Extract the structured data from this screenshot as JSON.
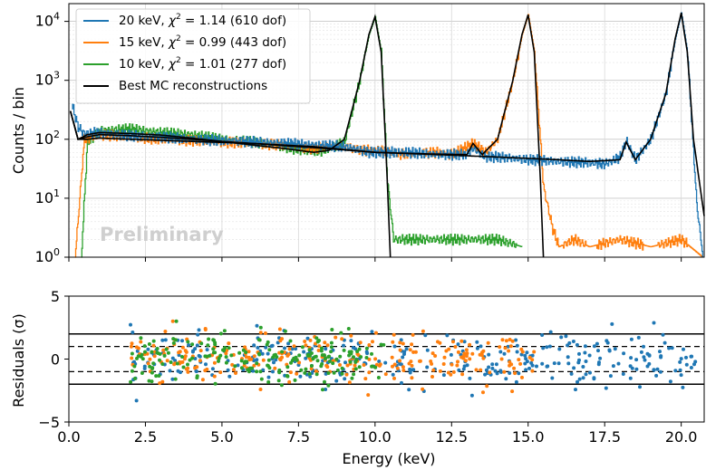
{
  "chart_data": [
    {
      "panel": "spectrum",
      "type": "line",
      "ylabel": "Counts / bin",
      "yscale": "log",
      "ylim": [
        1,
        20000
      ],
      "xlim": [
        0.0,
        20.75
      ],
      "yticks": [
        1,
        10,
        100,
        1000,
        10000
      ],
      "ytick_labels": [
        [
          "10",
          "0"
        ],
        [
          "10",
          "1"
        ],
        [
          "10",
          "2"
        ],
        [
          "10",
          "3"
        ],
        [
          "10",
          "4"
        ]
      ],
      "grid": true,
      "watermark": "Preliminary",
      "legend_placement": "top-left",
      "legend": [
        {
          "prefix": "20 keV, ",
          "chi": "χ",
          "sup": "2",
          "suffix": " = 1.14 (610 dof)",
          "color": "#1f77b4"
        },
        {
          "prefix": "15 keV, ",
          "chi": "χ",
          "sup": "2",
          "suffix": " = 0.99 (443 dof)",
          "color": "#ff7f0e"
        },
        {
          "prefix": "10 keV, ",
          "chi": "χ",
          "sup": "2",
          "suffix": " = 1.01 (277 dof)",
          "color": "#2ca02c"
        },
        {
          "prefix": "Best MC reconstructions",
          "chi": "",
          "sup": "",
          "suffix": "",
          "color": "#000000"
        }
      ],
      "series": [
        {
          "name": "20 keV",
          "color": "#1f77b4",
          "x": [
            0.1,
            0.3,
            0.5,
            1,
            2,
            3,
            4,
            5,
            6,
            7,
            8,
            9,
            9.8,
            10.5,
            11,
            12,
            13,
            13.2,
            13.6,
            14,
            15,
            16,
            17,
            17.5,
            18,
            18.2,
            18.5,
            19,
            19.5,
            19.8,
            20,
            20.2,
            20.5,
            20.7
          ],
          "y": [
            380,
            160,
            125,
            130,
            115,
            110,
            100,
            95,
            90,
            85,
            80,
            75,
            60,
            60,
            60,
            55,
            55,
            70,
            50,
            50,
            45,
            42,
            40,
            38,
            50,
            95,
            45,
            100,
            600,
            5000,
            14000,
            3000,
            8,
            1
          ]
        },
        {
          "name": "15 keV",
          "color": "#ff7f0e",
          "x": [
            0.2,
            0.5,
            1,
            2,
            3,
            4,
            5,
            6,
            7,
            8,
            8.8,
            9.5,
            10,
            10.5,
            11,
            12,
            12.5,
            13.2,
            13.6,
            14,
            14.5,
            14.8,
            15,
            15.2,
            15.5,
            15.8,
            16,
            16.5,
            17,
            18,
            19,
            20,
            20.7
          ],
          "y": [
            1,
            100,
            120,
            110,
            100,
            95,
            90,
            85,
            80,
            70,
            80,
            65,
            65,
            60,
            55,
            60,
            55,
            85,
            60,
            100,
            1000,
            6000,
            13000,
            3000,
            15,
            3,
            1.5,
            2,
            1.5,
            2,
            1.5,
            2,
            1
          ]
        },
        {
          "name": "10 keV",
          "color": "#2ca02c",
          "x": [
            0.4,
            0.6,
            1,
            2,
            3,
            4,
            5,
            6,
            7,
            8,
            8.5,
            9,
            9.5,
            9.8,
            10,
            10.2,
            10.4,
            10.6,
            11,
            12,
            13,
            14,
            14.8
          ],
          "y": [
            1,
            90,
            140,
            150,
            130,
            120,
            100,
            90,
            75,
            60,
            70,
            90,
            1000,
            6000,
            12000,
            3000,
            20,
            2,
            2,
            2,
            2,
            2,
            1.5
          ]
        },
        {
          "name": "Best MC reconstructions",
          "color": "#000000",
          "x": [
            0.05,
            0.3,
            0.6,
            1,
            2,
            3,
            4,
            5,
            6,
            7,
            8,
            8.5,
            9,
            9.5,
            9.8,
            10,
            10.2,
            10.4,
            10.5
          ],
          "y": [
            300,
            100,
            120,
            130,
            125,
            118,
            105,
            92,
            80,
            70,
            60,
            65,
            100,
            1000,
            6000,
            12000,
            3000,
            20,
            1
          ]
        },
        {
          "name": "Best MC reconstructions",
          "color": "#000000",
          "x": [
            0.05,
            0.3,
            0.6,
            1,
            2,
            3,
            4,
            5,
            6,
            7,
            8,
            9,
            10,
            11,
            12,
            13,
            13.2,
            13.5,
            14,
            14.5,
            14.8,
            15,
            15.2,
            15.4,
            15.5
          ],
          "y": [
            300,
            100,
            110,
            120,
            115,
            108,
            100,
            92,
            85,
            78,
            72,
            66,
            60,
            58,
            56,
            55,
            85,
            55,
            100,
            1000,
            6000,
            13000,
            3000,
            20,
            1
          ]
        },
        {
          "name": "Best MC reconstructions",
          "color": "#000000",
          "x": [
            0.05,
            0.3,
            0.6,
            1,
            2,
            4,
            6,
            8,
            10,
            12,
            14,
            16,
            17,
            18,
            18.2,
            18.5,
            19,
            19.5,
            19.8,
            20,
            20.2,
            20.4,
            20.75
          ],
          "y": [
            300,
            100,
            100,
            105,
            100,
            92,
            85,
            75,
            60,
            55,
            50,
            45,
            42,
            45,
            90,
            45,
            100,
            600,
            5000,
            14000,
            3000,
            100,
            5
          ]
        }
      ]
    },
    {
      "panel": "residuals",
      "type": "scatter",
      "xlabel": "Energy (keV)",
      "ylabel": "Residuals (σ)",
      "xlim": [
        0.0,
        20.75
      ],
      "ylim": [
        -5,
        5
      ],
      "xticks": [
        "0.0",
        "2.5",
        "5.0",
        "7.5",
        "10.0",
        "12.5",
        "15.0",
        "17.5",
        "20.0"
      ],
      "yticks": [
        "5",
        "0",
        "−5"
      ],
      "reference_lines": {
        "solid": [
          2,
          -2
        ],
        "dashed": [
          1,
          -1
        ]
      },
      "series": [
        {
          "name": "20 keV",
          "color": "#1f77b4",
          "x_range": [
            2.0,
            20.5
          ],
          "n_points": 330,
          "spread_sigma": 1.0
        },
        {
          "name": "15 keV",
          "color": "#ff7f0e",
          "x_range": [
            2.0,
            15.2
          ],
          "n_points": 260,
          "spread_sigma": 1.0
        },
        {
          "name": "10 keV",
          "color": "#2ca02c",
          "x_range": [
            2.0,
            10.3
          ],
          "n_points": 200,
          "spread_sigma": 1.0
        }
      ]
    }
  ]
}
